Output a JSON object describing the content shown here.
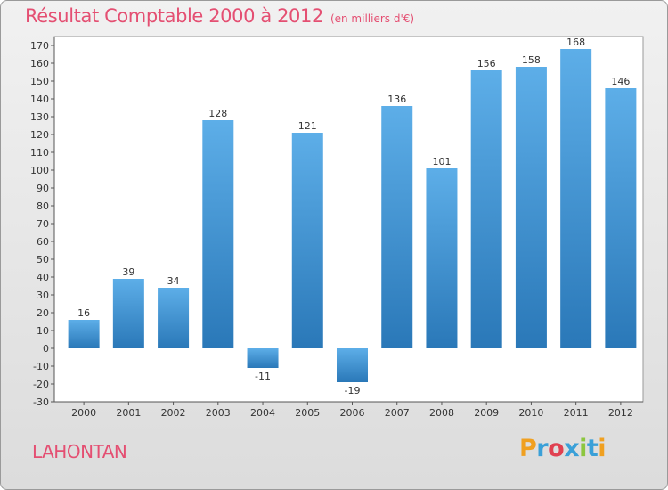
{
  "title": "Résultat Comptable 2000 à 2012",
  "subtitle": "(en milliers d'€)",
  "commune": "LAHONTAN",
  "logo": {
    "letters": [
      "P",
      "r",
      "o",
      "x",
      "i",
      "t",
      "i"
    ],
    "colors": [
      "#f0a020",
      "#3aa0d8",
      "#e04050",
      "#3aa0d8",
      "#8cc63f",
      "#3aa0d8",
      "#f0a020"
    ]
  },
  "colors": {
    "bar_top": "#5daee8",
    "bar_bottom": "#2a78b8",
    "title": "#e44f72"
  },
  "chart_data": {
    "type": "bar",
    "title": "Résultat Comptable 2000 à 2012",
    "ylabel": "(en milliers d'€)",
    "xlabel": "",
    "categories": [
      "2000",
      "2001",
      "2002",
      "2003",
      "2004",
      "2005",
      "2006",
      "2007",
      "2008",
      "2009",
      "2010",
      "2011",
      "2012"
    ],
    "values": [
      16,
      39,
      34,
      128,
      -11,
      121,
      -19,
      136,
      101,
      156,
      158,
      168,
      146
    ],
    "labels": [
      "16",
      "39",
      "34",
      "128",
      "-11",
      "121",
      "-19",
      "136",
      "101",
      "156",
      "158",
      "168",
      "146"
    ],
    "ylim": [
      -30,
      170
    ],
    "yticks": [
      -30,
      -20,
      -10,
      0,
      10,
      20,
      30,
      40,
      50,
      60,
      70,
      80,
      90,
      100,
      110,
      120,
      130,
      140,
      150,
      160,
      170
    ],
    "ytick_labels": [
      "-30",
      "-20",
      "-10",
      "0",
      "10",
      "20",
      "30",
      "40",
      "50",
      "60",
      "70",
      "80",
      "90",
      "100",
      "110",
      "120",
      "130",
      "140",
      "150",
      "160",
      "170"
    ],
    "grid": false,
    "legend": "none"
  }
}
